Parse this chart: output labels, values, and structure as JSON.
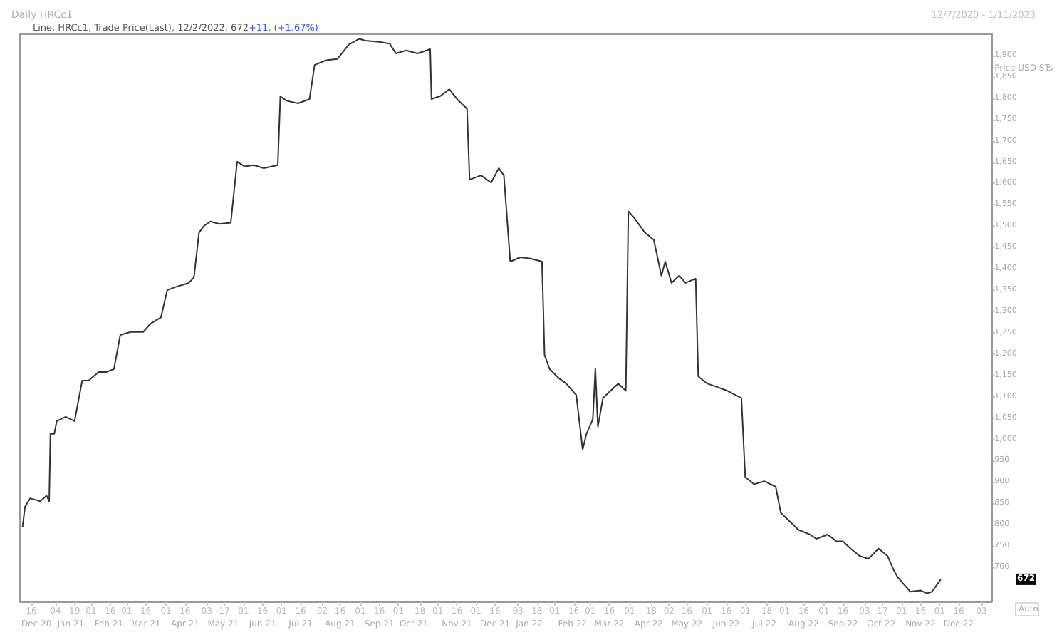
{
  "chart_data": {
    "type": "line",
    "title": "Daily HRCc1",
    "subtitle": "Line, HRCc1, Trade Price(Last), 12/2/2022, 672",
    "ylabel": "Price USD STs",
    "annotations": [
      "12/7/2020 - 1/11/2023",
      "+11, (+1.67%)",
      "672",
      "Auto"
    ],
    "series": [
      {
        "color": "#333333",
        "x": [
          "2020-12-09",
          "2020-12-11",
          "2020-12-15",
          "2020-12-23",
          "2020-12-28",
          "2020-12-30",
          "2020-12-31",
          "2021-01-03",
          "2021-01-05",
          "2021-01-12",
          "2021-01-19",
          "2021-01-25",
          "2021-01-30",
          "2021-02-07",
          "2021-02-13",
          "2021-02-19",
          "2021-02-24",
          "2021-03-04",
          "2021-03-14",
          "2021-03-20",
          "2021-03-28",
          "2021-04-02",
          "2021-04-08",
          "2021-04-19",
          "2021-04-23",
          "2021-04-27",
          "2021-05-01",
          "2021-05-06",
          "2021-05-13",
          "2021-05-22",
          "2021-05-27",
          "2021-06-02",
          "2021-06-09",
          "2021-06-17",
          "2021-06-28",
          "2021-06-30",
          "2021-07-05",
          "2021-07-14",
          "2021-07-23",
          "2021-07-27",
          "2021-08-05",
          "2021-08-14",
          "2021-08-23",
          "2021-08-31",
          "2021-09-05",
          "2021-09-16",
          "2021-09-24",
          "2021-09-29",
          "2021-10-07",
          "2021-10-16",
          "2021-10-26",
          "2021-10-27",
          "2021-11-03",
          "2021-11-10",
          "2021-11-17",
          "2021-11-24",
          "2021-11-26",
          "2021-12-05",
          "2021-12-13",
          "2021-12-19",
          "2021-12-23",
          "2021-12-28",
          "2022-01-05",
          "2022-01-13",
          "2022-01-22",
          "2022-01-24",
          "2022-01-28",
          "2022-02-04",
          "2022-02-10",
          "2022-02-18",
          "2022-02-23",
          "2022-02-26",
          "2022-03-03",
          "2022-03-05",
          "2022-03-07",
          "2022-03-11",
          "2022-03-17",
          "2022-03-23",
          "2022-03-29",
          "2022-03-31",
          "2022-04-05",
          "2022-04-13",
          "2022-04-20",
          "2022-04-26",
          "2022-04-29",
          "2022-05-04",
          "2022-05-10",
          "2022-05-15",
          "2022-05-23",
          "2022-05-25",
          "2022-06-01",
          "2022-06-08",
          "2022-06-17",
          "2022-06-28",
          "2022-07-01",
          "2022-07-08",
          "2022-07-16",
          "2022-07-25",
          "2022-07-29",
          "2022-08-04",
          "2022-08-12",
          "2022-08-21",
          "2022-08-26",
          "2022-09-04",
          "2022-09-11",
          "2022-09-16",
          "2022-09-22",
          "2022-09-29",
          "2022-10-06",
          "2022-10-14",
          "2022-10-21",
          "2022-10-26",
          "2022-10-29",
          "2022-11-03",
          "2022-11-08",
          "2022-11-16",
          "2022-11-21",
          "2022-11-25",
          "2022-12-02"
        ],
        "values": [
          794,
          842,
          862,
          855,
          868,
          855,
          1013,
          1013,
          1043,
          1053,
          1043,
          1138,
          1138,
          1158,
          1158,
          1165,
          1245,
          1252,
          1252,
          1272,
          1286,
          1350,
          1357,
          1367,
          1380,
          1485,
          1501,
          1511,
          1505,
          1508,
          1651,
          1640,
          1643,
          1636,
          1643,
          1804,
          1794,
          1788,
          1798,
          1878,
          1889,
          1892,
          1926,
          1939,
          1935,
          1932,
          1928,
          1905,
          1912,
          1905,
          1915,
          1798,
          1805,
          1821,
          1795,
          1775,
          1609,
          1619,
          1602,
          1636,
          1619,
          1417,
          1427,
          1424,
          1417,
          1198,
          1165,
          1144,
          1131,
          1104,
          976,
          1013,
          1047,
          1165,
          1030,
          1097,
          1114,
          1131,
          1114,
          1535,
          1518,
          1485,
          1468,
          1384,
          1417,
          1367,
          1384,
          1367,
          1377,
          1148,
          1131,
          1124,
          1114,
          1097,
          912,
          895,
          902,
          889,
          828,
          811,
          788,
          777,
          767,
          777,
          761,
          761,
          744,
          727,
          720,
          744,
          727,
          693,
          677,
          660,
          643,
          646,
          639,
          643,
          672
        ]
      }
    ],
    "xlim": [
      "2020-12-07",
      "2023-01-11"
    ],
    "xticks": [
      {
        "value": "2020-12-16",
        "label": "16"
      },
      {
        "value": "2021-01-04",
        "label": "04"
      },
      {
        "value": "2021-01-19",
        "label": "19"
      },
      {
        "value": "2021-02-01",
        "label": "01"
      },
      {
        "value": "2021-02-16",
        "label": "16"
      },
      {
        "value": "2021-03-01",
        "label": "01"
      },
      {
        "value": "2021-03-16",
        "label": "16"
      },
      {
        "value": "2021-04-01",
        "label": "01"
      },
      {
        "value": "2021-04-16",
        "label": "16"
      },
      {
        "value": "2021-05-03",
        "label": "03"
      },
      {
        "value": "2021-05-17",
        "label": "17"
      },
      {
        "value": "2021-06-01",
        "label": "01"
      },
      {
        "value": "2021-06-16",
        "label": "16"
      },
      {
        "value": "2021-07-01",
        "label": "01"
      },
      {
        "value": "2021-07-16",
        "label": "16"
      },
      {
        "value": "2021-08-02",
        "label": "02"
      },
      {
        "value": "2021-08-16",
        "label": "16"
      },
      {
        "value": "2021-09-01",
        "label": "01"
      },
      {
        "value": "2021-09-16",
        "label": "16"
      },
      {
        "value": "2021-10-01",
        "label": "01"
      },
      {
        "value": "2021-10-18",
        "label": "18"
      },
      {
        "value": "2021-11-01",
        "label": "01"
      },
      {
        "value": "2021-11-16",
        "label": "16"
      },
      {
        "value": "2021-12-01",
        "label": "01"
      },
      {
        "value": "2021-12-16",
        "label": "16"
      },
      {
        "value": "2022-01-03",
        "label": "03"
      },
      {
        "value": "2022-01-18",
        "label": "18"
      },
      {
        "value": "2022-02-01",
        "label": "01"
      },
      {
        "value": "2022-02-16",
        "label": "16"
      },
      {
        "value": "2022-03-01",
        "label": "01"
      },
      {
        "value": "2022-03-16",
        "label": "16"
      },
      {
        "value": "2022-04-01",
        "label": "01"
      },
      {
        "value": "2022-04-18",
        "label": "18"
      },
      {
        "value": "2022-05-02",
        "label": "02"
      },
      {
        "value": "2022-05-16",
        "label": "16"
      },
      {
        "value": "2022-06-01",
        "label": "01"
      },
      {
        "value": "2022-06-16",
        "label": "16"
      },
      {
        "value": "2022-07-01",
        "label": "01"
      },
      {
        "value": "2022-07-18",
        "label": "18"
      },
      {
        "value": "2022-08-01",
        "label": "01"
      },
      {
        "value": "2022-08-16",
        "label": "16"
      },
      {
        "value": "2022-09-01",
        "label": "01"
      },
      {
        "value": "2022-09-16",
        "label": "16"
      },
      {
        "value": "2022-10-03",
        "label": "03"
      },
      {
        "value": "2022-10-17",
        "label": "17"
      },
      {
        "value": "2022-11-01",
        "label": "01"
      },
      {
        "value": "2022-11-16",
        "label": "16"
      },
      {
        "value": "2022-12-01",
        "label": "01"
      },
      {
        "value": "2022-12-16",
        "label": "16"
      },
      {
        "value": "2023-01-03",
        "label": "03"
      }
    ],
    "x2lim": [
      "2020-12-07",
      "2023-01-11"
    ],
    "x2ticks": [
      {
        "value": "2020-12-20",
        "label": "Dec 20"
      },
      {
        "value": "2021-01-16",
        "label": "Jan 21"
      },
      {
        "value": "2021-02-15",
        "label": "Feb 21"
      },
      {
        "value": "2021-03-16",
        "label": "Mar 21"
      },
      {
        "value": "2021-04-16",
        "label": "Apr 21"
      },
      {
        "value": "2021-05-16",
        "label": "May 21"
      },
      {
        "value": "2021-06-16",
        "label": "Jun 21"
      },
      {
        "value": "2021-07-16",
        "label": "Jul 21"
      },
      {
        "value": "2021-08-16",
        "label": "Aug 21"
      },
      {
        "value": "2021-09-16",
        "label": "Sep 21"
      },
      {
        "value": "2021-10-13",
        "label": "Oct 21"
      },
      {
        "value": "2021-11-16",
        "label": "Nov 21"
      },
      {
        "value": "2021-12-16",
        "label": "Dec 21"
      },
      {
        "value": "2022-01-12",
        "label": "Jan 22"
      },
      {
        "value": "2022-02-15",
        "label": "Feb 22"
      },
      {
        "value": "2022-03-16",
        "label": "Mar 22"
      },
      {
        "value": "2022-04-16",
        "label": "Apr 22"
      },
      {
        "value": "2022-05-16",
        "label": "May 22"
      },
      {
        "value": "2022-06-16",
        "label": "Jun 22"
      },
      {
        "value": "2022-07-16",
        "label": "Jul 22"
      },
      {
        "value": "2022-08-16",
        "label": "Aug 22"
      },
      {
        "value": "2022-09-16",
        "label": "Sep 22"
      },
      {
        "value": "2022-10-16",
        "label": "Oct 22"
      },
      {
        "value": "2022-11-16",
        "label": "Nov 22"
      },
      {
        "value": "2022-12-16",
        "label": "Dec 22"
      }
    ],
    "ylim": [
      620,
      1950
    ],
    "yticks": [
      {
        "value": 700,
        "label": "700"
      },
      {
        "value": 750,
        "label": "750"
      },
      {
        "value": 800,
        "label": "800"
      },
      {
        "value": 850,
        "label": "850"
      },
      {
        "value": 900,
        "label": "900"
      },
      {
        "value": 950,
        "label": "950"
      },
      {
        "value": 1000,
        "label": "1,000"
      },
      {
        "value": 1050,
        "label": "1,050"
      },
      {
        "value": 1100,
        "label": "1,100"
      },
      {
        "value": 1150,
        "label": "1,150"
      },
      {
        "value": 1200,
        "label": "1,200"
      },
      {
        "value": 1250,
        "label": "1,250"
      },
      {
        "value": 1300,
        "label": "1,300"
      },
      {
        "value": 1350,
        "label": "1,350"
      },
      {
        "value": 1400,
        "label": "1,400"
      },
      {
        "value": 1450,
        "label": "1,450"
      },
      {
        "value": 1500,
        "label": "1,500"
      },
      {
        "value": 1550,
        "label": "1,550"
      },
      {
        "value": 1600,
        "label": "1,600"
      },
      {
        "value": 1650,
        "label": "1,650"
      },
      {
        "value": 1700,
        "label": "1,700"
      },
      {
        "value": 1750,
        "label": "1,750"
      },
      {
        "value": 1800,
        "label": "1,800"
      },
      {
        "value": 1850,
        "label": "1,850"
      },
      {
        "value": 1900,
        "label": "1,900"
      }
    ],
    "grid": false,
    "marker": "none",
    "line_style": "solid"
  }
}
